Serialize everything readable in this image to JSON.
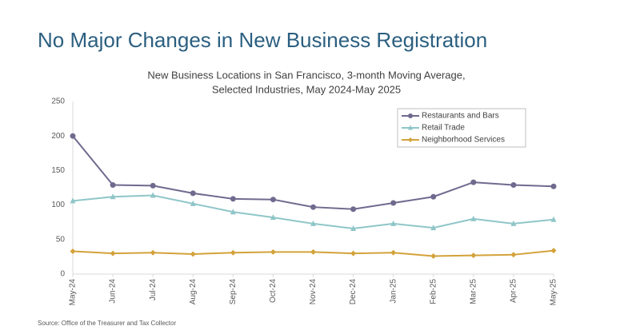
{
  "header": {
    "title": "No Major Changes in New Business Registration"
  },
  "chart_data": {
    "type": "line",
    "title": [
      "New Business Locations in San Francisco, 3-month Moving Average,",
      "Selected Industries, May 2024-May 2025"
    ],
    "categories": [
      "May-24",
      "Jun-24",
      "Jul-24",
      "Aug-24",
      "Sep-24",
      "Oct-24",
      "Nov-24",
      "Dec-24",
      "Jan-25",
      "Feb-25",
      "Mar-25",
      "Apr-25",
      "May-25"
    ],
    "series": [
      {
        "name": "Restaurants and Bars",
        "color": "#6f6a8e",
        "marker": "circle",
        "values": [
          200,
          129,
          128,
          117,
          109,
          108,
          97,
          94,
          103,
          112,
          133,
          129,
          127
        ]
      },
      {
        "name": "Retail Trade",
        "color": "#8fc6c8",
        "marker": "triangle",
        "values": [
          106,
          112,
          114,
          102,
          90,
          82,
          73,
          66,
          73,
          67,
          80,
          73,
          79
        ]
      },
      {
        "name": "Neighborhood Services",
        "color": "#d3a23a",
        "marker": "diamond",
        "values": [
          33,
          30,
          31,
          29,
          31,
          32,
          32,
          30,
          31,
          26,
          27,
          28,
          34
        ]
      }
    ],
    "ylim": [
      0,
      250
    ],
    "yticks": [
      0,
      50,
      100,
      150,
      200,
      250
    ],
    "grid": false,
    "legend": "top-right"
  },
  "footer": {
    "source": "Source: Office of the Treasurer and Tax Collector"
  }
}
